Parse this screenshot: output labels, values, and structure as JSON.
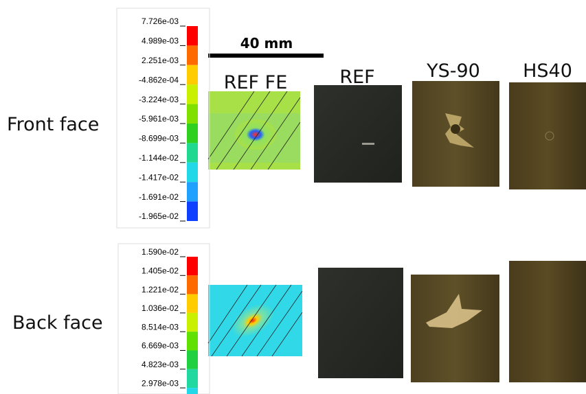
{
  "row_labels": [
    "Front face",
    "Back face"
  ],
  "scale_bar": "40 mm",
  "column_headers": [
    "REF FE",
    "REF",
    "YS-90",
    "HS40"
  ],
  "front_colorbar": {
    "labels": [
      "7.726e-03",
      "4.989e-03",
      "2.251e-03",
      "-4.862e-04",
      "-3.224e-03",
      "-5.961e-03",
      "-8.699e-03",
      "-1.144e-02",
      "-1.417e-02",
      "-1.691e-02",
      "-1.965e-02"
    ]
  },
  "back_colorbar": {
    "labels": [
      "1.590e-02",
      "1.405e-02",
      "1.221e-02",
      "1.036e-02",
      "8.514e-03",
      "6.669e-03",
      "4.823e-03",
      "2.978e-03"
    ]
  }
}
